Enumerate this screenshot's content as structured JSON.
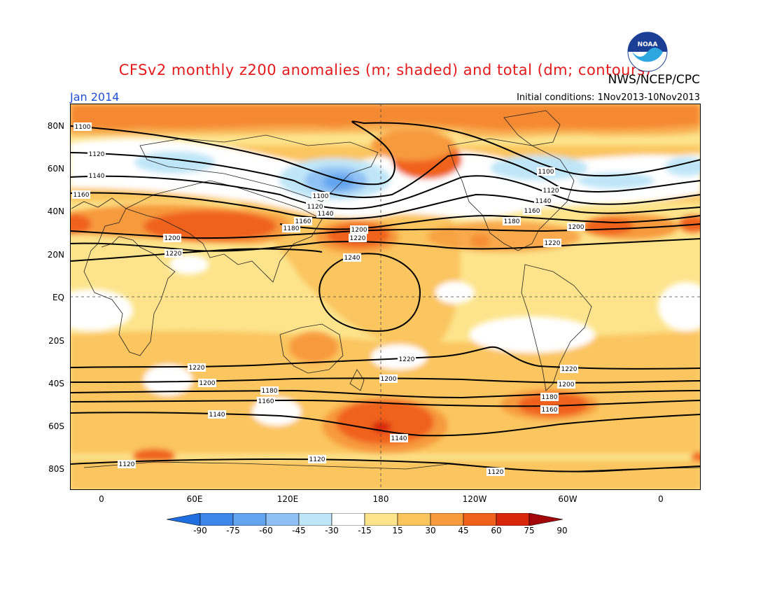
{
  "header": {
    "title": "CFSv2 monthly z200 anomalies (m; shaded) and total (dm; contours)",
    "org": "NWS/NCEP/CPC",
    "date": "Jan 2014",
    "initial_conditions": "Initial conditions: 1Nov2013-10Nov2013",
    "logo_icon": "noaa-logo-icon",
    "logo_text": "NOAA"
  },
  "axes": {
    "lat_labels": [
      "80N",
      "60N",
      "40N",
      "20N",
      "EQ",
      "20S",
      "40S",
      "60S",
      "80S"
    ],
    "lon_labels": [
      "0",
      "60E",
      "120E",
      "180",
      "120W",
      "60W",
      "0"
    ]
  },
  "colorbar": {
    "labels": [
      "-90",
      "-75",
      "-60",
      "-45",
      "-30",
      "-15",
      "15",
      "30",
      "45",
      "60",
      "75",
      "90"
    ],
    "colors": [
      "#1f6ee0",
      "#3d87ea",
      "#62a4f0",
      "#8fc1f4",
      "#bfe6f8",
      "#ffffff",
      "#fde48c",
      "#fbc55e",
      "#f79a3c",
      "#f0621c",
      "#d9270c",
      "#a3070a"
    ]
  },
  "contour_labels": [
    "1100",
    "1120",
    "1140",
    "1160",
    "1100",
    "1120",
    "1140",
    "1160",
    "1180",
    "1200",
    "1220",
    "1200",
    "1220",
    "1240",
    "1100",
    "1120",
    "1140",
    "1160",
    "1180",
    "1200",
    "1220",
    "1220",
    "1200",
    "1180",
    "1160",
    "1140",
    "1220",
    "1200",
    "1140",
    "1120",
    "1120",
    "1220",
    "1200",
    "1180",
    "1160",
    "1120"
  ]
}
